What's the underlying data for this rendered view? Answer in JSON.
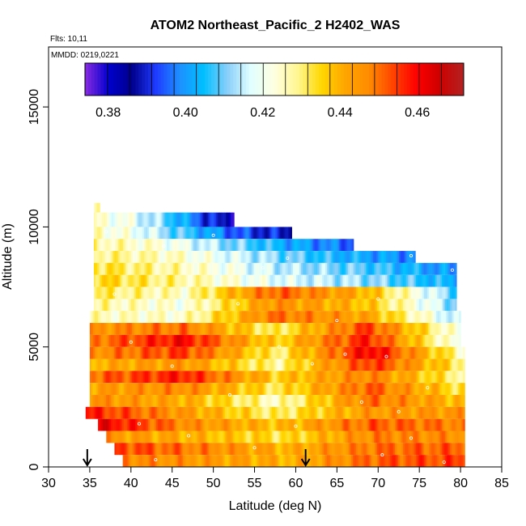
{
  "chart_data": {
    "type": "heatmap",
    "title": "ATOM2 Northeast_Pacific_2 H2402_WAS",
    "flights_note": "Flts: 10,11",
    "dates_note": "MMDD: 0219,0221",
    "xlabel": "Latitude (deg N)",
    "ylabel": "Altitude (m)",
    "xlim": [
      30,
      85
    ],
    "ylim": [
      0,
      17500
    ],
    "x_ticks": [
      30,
      35,
      40,
      45,
      50,
      55,
      60,
      65,
      70,
      75,
      80,
      85
    ],
    "y_ticks": [
      0,
      5000,
      10000,
      15000
    ],
    "colorbar": {
      "range": [
        0.374,
        0.472
      ],
      "tick_values": [
        0.38,
        0.4,
        0.42,
        0.44,
        0.46
      ],
      "tick_labels": [
        "0.38",
        "0.40",
        "0.42",
        "0.44",
        "0.46"
      ],
      "colors": [
        "#8a2be2",
        "#0000cd",
        "#00008b",
        "#1e3cff",
        "#1e90ff",
        "#00bfff",
        "#87cefa",
        "#e0ffff",
        "#ffffe0",
        "#fff68f",
        "#ffd700",
        "#ffa500",
        "#ff8c00",
        "#ff4500",
        "#ff0000",
        "#cd0000",
        "#b22222"
      ]
    },
    "arrows_latitude": [
      34.7,
      61.2
    ],
    "layers": [
      {
        "alt": [
          10600,
          11000
        ],
        "lat": [
          35.5,
          36.2
        ],
        "values": [
          0.425,
          0.425
        ]
      },
      {
        "alt": [
          10000,
          10600
        ],
        "lat": [
          35.5,
          52.5
        ],
        "values": [
          0.424,
          0.42,
          0.41,
          0.395,
          0.383
        ]
      },
      {
        "alt": [
          9500,
          10000
        ],
        "lat": [
          35.5,
          59.5
        ],
        "values": [
          0.426,
          0.418,
          0.405,
          0.393,
          0.388
        ]
      },
      {
        "alt": [
          9000,
          9500
        ],
        "lat": [
          35.5,
          67.0
        ],
        "values": [
          0.428,
          0.423,
          0.412,
          0.402,
          0.395
        ]
      },
      {
        "alt": [
          8500,
          9000
        ],
        "lat": [
          35.5,
          74.5
        ],
        "values": [
          0.43,
          0.425,
          0.414,
          0.404,
          0.398
        ]
      },
      {
        "alt": [
          8000,
          8500
        ],
        "lat": [
          35.5,
          79.5
        ],
        "values": [
          0.434,
          0.426,
          0.415,
          0.408,
          0.398
        ]
      },
      {
        "alt": [
          7500,
          8000
        ],
        "lat": [
          35.5,
          79.5
        ],
        "values": [
          0.436,
          0.428,
          0.418,
          0.412,
          0.402
        ]
      },
      {
        "alt": [
          7000,
          7500
        ],
        "lat": [
          35.5,
          79.5
        ],
        "values": [
          0.432,
          0.425,
          0.452,
          0.44,
          0.408
        ]
      },
      {
        "alt": [
          6500,
          7000
        ],
        "lat": [
          35.5,
          79.5
        ],
        "values": [
          0.428,
          0.422,
          0.446,
          0.438,
          0.41
        ]
      },
      {
        "alt": [
          6000,
          6500
        ],
        "lat": [
          35.0,
          80.0
        ],
        "values": [
          0.426,
          0.424,
          0.45,
          0.442,
          0.412
        ]
      },
      {
        "alt": [
          5500,
          6000
        ],
        "lat": [
          35.0,
          80.0
        ],
        "values": [
          0.445,
          0.45,
          0.43,
          0.455,
          0.42
        ]
      },
      {
        "alt": [
          5000,
          5500
        ],
        "lat": [
          35.0,
          80.0
        ],
        "values": [
          0.448,
          0.46,
          0.435,
          0.458,
          0.418
        ]
      },
      {
        "alt": [
          4500,
          5000
        ],
        "lat": [
          35.0,
          80.5
        ],
        "values": [
          0.446,
          0.455,
          0.43,
          0.462,
          0.425
        ]
      },
      {
        "alt": [
          4000,
          4500
        ],
        "lat": [
          35.0,
          80.5
        ],
        "values": [
          0.44,
          0.445,
          0.428,
          0.456,
          0.43
        ]
      },
      {
        "alt": [
          3500,
          4000
        ],
        "lat": [
          35.0,
          80.5
        ],
        "values": [
          0.45,
          0.458,
          0.436,
          0.448,
          0.428
        ]
      },
      {
        "alt": [
          3000,
          3500
        ],
        "lat": [
          35.0,
          80.5
        ],
        "values": [
          0.443,
          0.447,
          0.432,
          0.452,
          0.432
        ]
      },
      {
        "alt": [
          2500,
          3000
        ],
        "lat": [
          35.0,
          80.5
        ],
        "values": [
          0.446,
          0.441,
          0.425,
          0.45,
          0.438
        ]
      },
      {
        "alt": [
          2000,
          2500
        ],
        "lat": [
          34.5,
          80.5
        ],
        "values": [
          0.458,
          0.445,
          0.43,
          0.444,
          0.445
        ]
      },
      {
        "alt": [
          1500,
          2000
        ],
        "lat": [
          36.0,
          80.5
        ],
        "values": [
          0.462,
          0.446,
          0.438,
          0.452,
          0.448
        ]
      },
      {
        "alt": [
          1000,
          1500
        ],
        "lat": [
          37.0,
          80.5
        ],
        "values": [
          0.445,
          0.44,
          0.433,
          0.448,
          0.446
        ]
      },
      {
        "alt": [
          500,
          1000
        ],
        "lat": [
          38.0,
          80.5
        ],
        "values": [
          0.455,
          0.448,
          0.44,
          0.45,
          0.452
        ]
      },
      {
        "alt": [
          0,
          500
        ],
        "lat": [
          39.0,
          80.5
        ],
        "values": [
          0.448,
          0.444,
          0.44,
          0.452,
          0.454
        ]
      }
    ],
    "sample_points": [
      {
        "lat": 37.0,
        "alt": 9800
      },
      {
        "lat": 44.0,
        "alt": 9200
      },
      {
        "lat": 50.0,
        "alt": 9650
      },
      {
        "lat": 56.0,
        "alt": 8300
      },
      {
        "lat": 63.0,
        "alt": 7600
      },
      {
        "lat": 70.0,
        "alt": 7000
      },
      {
        "lat": 74.0,
        "alt": 8800
      },
      {
        "lat": 79.0,
        "alt": 8200
      },
      {
        "lat": 40.0,
        "alt": 5200
      },
      {
        "lat": 45.0,
        "alt": 4200
      },
      {
        "lat": 52.0,
        "alt": 3000
      },
      {
        "lat": 58.0,
        "alt": 5000
      },
      {
        "lat": 62.0,
        "alt": 4300
      },
      {
        "lat": 66.0,
        "alt": 4700
      },
      {
        "lat": 71.0,
        "alt": 4600
      },
      {
        "lat": 72.5,
        "alt": 2300
      },
      {
        "lat": 76.0,
        "alt": 3300
      },
      {
        "lat": 41.0,
        "alt": 1800
      },
      {
        "lat": 47.0,
        "alt": 1300
      },
      {
        "lat": 55.0,
        "alt": 800
      },
      {
        "lat": 60.0,
        "alt": 1700
      },
      {
        "lat": 68.0,
        "alt": 2700
      },
      {
        "lat": 70.5,
        "alt": 500
      },
      {
        "lat": 74.0,
        "alt": 1200
      },
      {
        "lat": 78.0,
        "alt": 200
      },
      {
        "lat": 43.0,
        "alt": 300
      },
      {
        "lat": 65.0,
        "alt": 6100
      },
      {
        "lat": 59.0,
        "alt": 8700
      },
      {
        "lat": 38.0,
        "alt": 7200
      },
      {
        "lat": 53.0,
        "alt": 6800
      }
    ]
  }
}
